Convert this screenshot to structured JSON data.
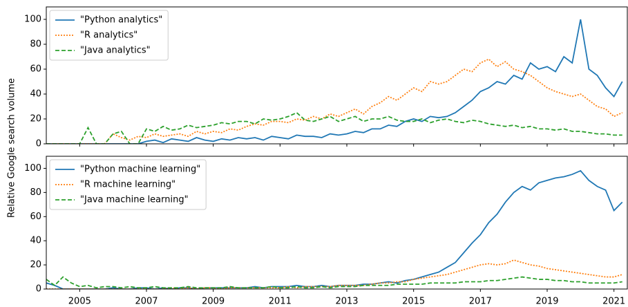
{
  "y_label": "Relative Google search volume",
  "chart_data": [
    {
      "type": "line",
      "legend": "upper left",
      "xlim": [
        2004,
        2021.4
      ],
      "ylim": [
        0,
        110
      ],
      "xticks": [
        2005,
        2007,
        2009,
        2011,
        2013,
        2015,
        2017,
        2019,
        2021
      ],
      "yticks": [
        0,
        20,
        40,
        60,
        80,
        100
      ],
      "x": [
        2004,
        2004.25,
        2004.5,
        2004.75,
        2005,
        2005.25,
        2005.5,
        2005.75,
        2006,
        2006.25,
        2006.5,
        2006.75,
        2007,
        2007.25,
        2007.5,
        2007.75,
        2008,
        2008.25,
        2008.5,
        2008.75,
        2009,
        2009.25,
        2009.5,
        2009.75,
        2010,
        2010.25,
        2010.5,
        2010.75,
        2011,
        2011.25,
        2011.5,
        2011.75,
        2012,
        2012.25,
        2012.5,
        2012.75,
        2013,
        2013.25,
        2013.5,
        2013.75,
        2014,
        2014.25,
        2014.5,
        2014.75,
        2015,
        2015.25,
        2015.5,
        2015.75,
        2016,
        2016.25,
        2016.5,
        2016.75,
        2017,
        2017.25,
        2017.5,
        2017.75,
        2018,
        2018.25,
        2018.5,
        2018.75,
        2019,
        2019.25,
        2019.5,
        2019.75,
        2020,
        2020.25,
        2020.5,
        2020.75,
        2021,
        2021.25
      ],
      "series": [
        {
          "name": "\"Python analytics\"",
          "color": "#1f77b4",
          "linestyle": "solid",
          "values": [
            0,
            0,
            0,
            0,
            0,
            0,
            0,
            0,
            0,
            0,
            0,
            0,
            2,
            3,
            1,
            4,
            3,
            2,
            5,
            3,
            2,
            4,
            3,
            5,
            4,
            5,
            3,
            6,
            5,
            4,
            7,
            6,
            6,
            5,
            8,
            7,
            8,
            10,
            9,
            12,
            12,
            15,
            14,
            18,
            20,
            18,
            22,
            21,
            22,
            25,
            30,
            35,
            42,
            45,
            50,
            48,
            55,
            52,
            65,
            60,
            62,
            58,
            70,
            65,
            100,
            60,
            55,
            45,
            38,
            50
          ]
        },
        {
          "name": "\"R analytics\"",
          "color": "#ff7f0e",
          "linestyle": "dotted",
          "values": [
            0,
            0,
            0,
            0,
            0,
            0,
            0,
            0,
            8,
            5,
            3,
            6,
            5,
            8,
            6,
            7,
            8,
            6,
            10,
            8,
            10,
            9,
            12,
            11,
            14,
            16,
            15,
            18,
            18,
            17,
            20,
            19,
            22,
            20,
            24,
            22,
            25,
            28,
            24,
            30,
            33,
            38,
            35,
            40,
            45,
            42,
            50,
            48,
            50,
            55,
            60,
            58,
            65,
            68,
            62,
            66,
            60,
            58,
            55,
            50,
            45,
            42,
            40,
            38,
            40,
            35,
            30,
            28,
            22,
            25
          ]
        },
        {
          "name": "\"Java analytics\"",
          "color": "#2ca02c",
          "linestyle": "dashed",
          "values": [
            0,
            0,
            0,
            0,
            0,
            13,
            0,
            0,
            8,
            10,
            0,
            0,
            12,
            10,
            14,
            11,
            12,
            15,
            13,
            14,
            15,
            17,
            16,
            18,
            18,
            16,
            20,
            19,
            20,
            22,
            25,
            19,
            18,
            20,
            22,
            18,
            20,
            22,
            18,
            20,
            20,
            22,
            19,
            18,
            18,
            20,
            17,
            19,
            20,
            18,
            17,
            19,
            18,
            16,
            15,
            14,
            15,
            13,
            14,
            12,
            12,
            11,
            12,
            10,
            10,
            9,
            8,
            8,
            7,
            7
          ]
        }
      ]
    },
    {
      "type": "line",
      "legend": "upper left",
      "xlim": [
        2004,
        2021.4
      ],
      "ylim": [
        0,
        110
      ],
      "xticks": [
        2005,
        2007,
        2009,
        2011,
        2013,
        2015,
        2017,
        2019,
        2021
      ],
      "yticks": [
        0,
        20,
        40,
        60,
        80,
        100
      ],
      "x": [
        2004,
        2004.25,
        2004.5,
        2004.75,
        2005,
        2005.25,
        2005.5,
        2005.75,
        2006,
        2006.25,
        2006.5,
        2006.75,
        2007,
        2007.25,
        2007.5,
        2007.75,
        2008,
        2008.25,
        2008.5,
        2008.75,
        2009,
        2009.25,
        2009.5,
        2009.75,
        2010,
        2010.25,
        2010.5,
        2010.75,
        2011,
        2011.25,
        2011.5,
        2011.75,
        2012,
        2012.25,
        2012.5,
        2012.75,
        2013,
        2013.25,
        2013.5,
        2013.75,
        2014,
        2014.25,
        2014.5,
        2014.75,
        2015,
        2015.25,
        2015.5,
        2015.75,
        2016,
        2016.25,
        2016.5,
        2016.75,
        2017,
        2017.25,
        2017.5,
        2017.75,
        2018,
        2018.25,
        2018.5,
        2018.75,
        2019,
        2019.25,
        2019.5,
        2019.75,
        2020,
        2020.25,
        2020.5,
        2020.75,
        2021,
        2021.25
      ],
      "series": [
        {
          "name": "\"Python machine learning\"",
          "color": "#1f77b4",
          "linestyle": "solid",
          "values": [
            5,
            3,
            0,
            0,
            0,
            0,
            0,
            0,
            1,
            0,
            0,
            1,
            1,
            0,
            1,
            0,
            1,
            1,
            0,
            1,
            1,
            1,
            1,
            1,
            1,
            2,
            1,
            2,
            2,
            2,
            3,
            2,
            2,
            3,
            2,
            3,
            3,
            3,
            4,
            4,
            5,
            6,
            5,
            7,
            8,
            10,
            12,
            14,
            18,
            22,
            30,
            38,
            45,
            55,
            62,
            72,
            80,
            85,
            82,
            88,
            90,
            92,
            93,
            95,
            98,
            90,
            85,
            82,
            65,
            72
          ]
        },
        {
          "name": "\"R machine learning\"",
          "color": "#ff7f0e",
          "linestyle": "dotted",
          "values": [
            0,
            0,
            0,
            0,
            0,
            0,
            0,
            0,
            0,
            0,
            0,
            0,
            0,
            0,
            0,
            1,
            0,
            1,
            0,
            1,
            1,
            0,
            1,
            1,
            1,
            1,
            1,
            1,
            1,
            2,
            1,
            2,
            2,
            2,
            2,
            3,
            3,
            3,
            3,
            4,
            5,
            5,
            6,
            6,
            8,
            9,
            10,
            11,
            12,
            14,
            16,
            18,
            20,
            21,
            20,
            21,
            24,
            22,
            20,
            19,
            17,
            16,
            15,
            14,
            13,
            12,
            11,
            10,
            10,
            12
          ]
        },
        {
          "name": "\"Java machine learning\"",
          "color": "#2ca02c",
          "linestyle": "dashed",
          "values": [
            8,
            3,
            10,
            5,
            2,
            3,
            1,
            2,
            2,
            1,
            2,
            1,
            1,
            2,
            1,
            1,
            1,
            2,
            1,
            1,
            1,
            1,
            2,
            1,
            1,
            1,
            1,
            2,
            1,
            1,
            2,
            1,
            1,
            2,
            1,
            2,
            2,
            2,
            3,
            3,
            3,
            3,
            4,
            4,
            4,
            4,
            5,
            5,
            5,
            5,
            6,
            6,
            6,
            7,
            7,
            8,
            9,
            10,
            9,
            8,
            8,
            7,
            7,
            6,
            6,
            5,
            5,
            5,
            5,
            6
          ]
        }
      ]
    }
  ]
}
